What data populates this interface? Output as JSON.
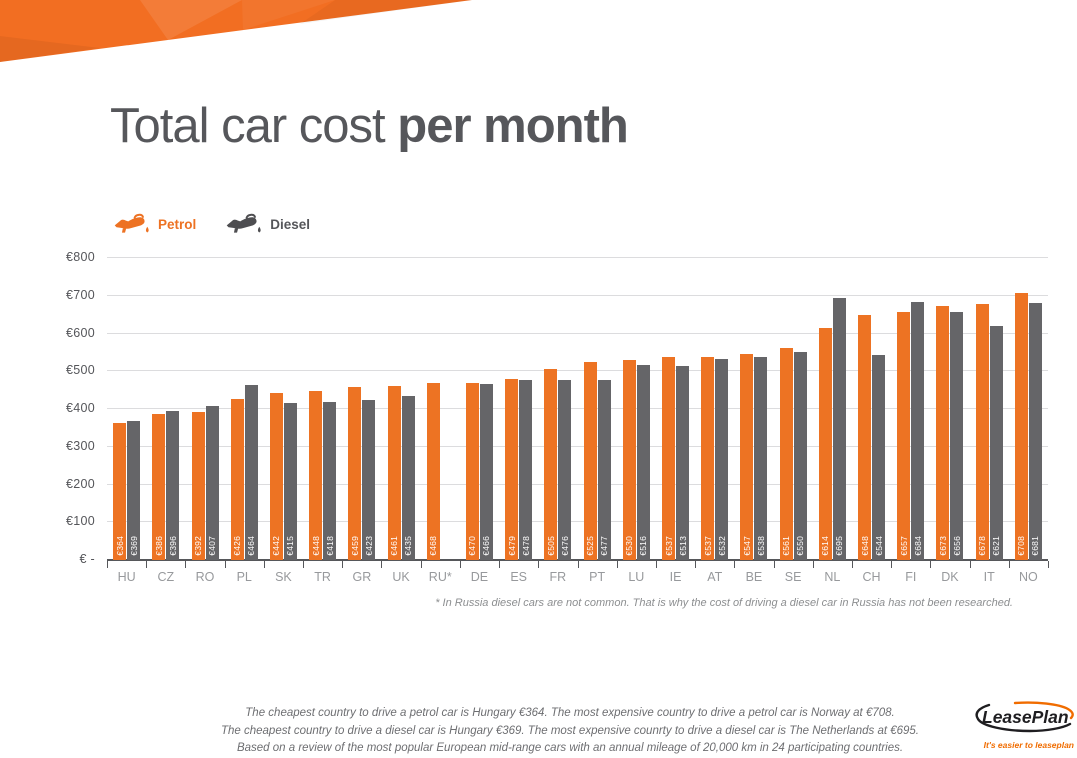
{
  "banner": {
    "color": "#F26E22"
  },
  "title": {
    "regular": "Total car cost",
    "bold": "per month"
  },
  "legend": {
    "items": [
      {
        "label": "Petrol",
        "color": "#ED7223"
      },
      {
        "label": "Diesel",
        "color": "#55565A"
      }
    ]
  },
  "chart_data": {
    "type": "bar",
    "title": "Total car cost per month",
    "currency_prefix": "€",
    "categories": [
      "HU",
      "CZ",
      "RO",
      "PL",
      "SK",
      "TR",
      "GR",
      "UK",
      "RU*",
      "DE",
      "ES",
      "FR",
      "PT",
      "LU",
      "IE",
      "AT",
      "BE",
      "SE",
      "NL",
      "CH",
      "FI",
      "DK",
      "IT",
      "NO"
    ],
    "series": [
      {
        "name": "Petrol",
        "color": "#ED7323",
        "values": [
          364,
          386,
          392,
          426,
          442,
          448,
          459,
          461,
          468,
          470,
          479,
          505,
          525,
          530,
          537,
          537,
          547,
          561,
          614,
          648,
          657,
          673,
          678,
          708
        ]
      },
      {
        "name": "Diesel",
        "color": "#656568",
        "values": [
          369,
          396,
          407,
          464,
          415,
          418,
          423,
          435,
          null,
          466,
          478,
          476,
          477,
          516,
          513,
          532,
          538,
          550,
          695,
          544,
          684,
          656,
          621,
          681
        ]
      }
    ],
    "ylim": [
      0,
      800
    ],
    "y_ticks": [
      {
        "value": 800,
        "label": "€800"
      },
      {
        "value": 700,
        "label": "€700"
      },
      {
        "value": 600,
        "label": "€600"
      },
      {
        "value": 500,
        "label": "€500"
      },
      {
        "value": 400,
        "label": "€400"
      },
      {
        "value": 300,
        "label": "€300"
      },
      {
        "value": 200,
        "label": "€200"
      },
      {
        "value": 100,
        "label": "€100"
      },
      {
        "value": 0,
        "label": "€ -"
      }
    ],
    "grid": "horizontal",
    "legend_position": "top-left",
    "bar_value_labels": "vertical, white, inside bar bottom"
  },
  "footnote": "* In Russia diesel cars are not common. That is why the cost of driving a diesel car in Russia has not been researched.",
  "summary": {
    "lines": [
      "The cheapest country to drive a petrol car is Hungary €364. The most expensive country to drive a petrol car is Norway at €708.",
      "The cheapest country to drive a diesel car is Hungary €369. The most expensive counrty to drive a diesel car is The Netherlands at €695.",
      "Based on a review of the most popular European mid-range cars with an annual mileage of 20,000 km in 24 participating countries."
    ]
  },
  "logo": {
    "name": "LeasePlan",
    "tagline": "It's easier to leaseplan"
  }
}
